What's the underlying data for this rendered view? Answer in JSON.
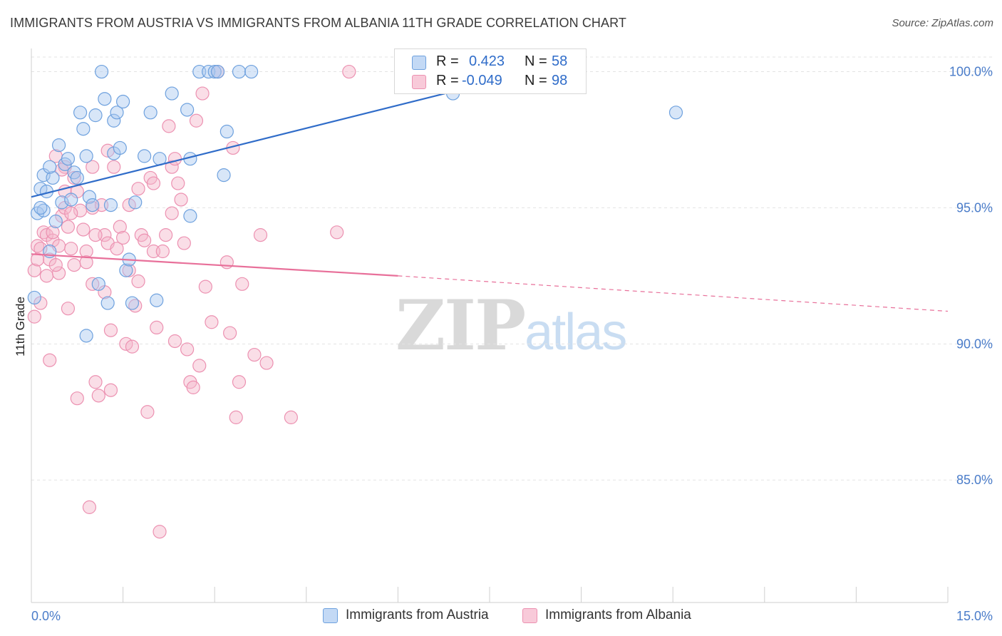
{
  "header": {
    "title": "IMMIGRANTS FROM AUSTRIA VS IMMIGRANTS FROM ALBANIA 11TH GRADE CORRELATION CHART",
    "source": "Source: ZipAtlas.com"
  },
  "watermark": {
    "zip": "ZIP",
    "atlas": "atlas"
  },
  "legend": {
    "rows": [
      {
        "r_label": "R = ",
        "r_value": "0.423",
        "n_label": "N = ",
        "n_value": "58",
        "color": "#a8c8f0"
      },
      {
        "r_label": "R = ",
        "r_value": "-0.049",
        "n_label": "N = ",
        "n_value": "98",
        "color": "#f4b6c9"
      }
    ]
  },
  "bottom_legend": [
    {
      "label": "Immigrants from Austria",
      "color": "#a8c8f0"
    },
    {
      "label": "Immigrants from Albania",
      "color": "#f4b6c9"
    }
  ],
  "chart_data": {
    "type": "scatter",
    "title": "IMMIGRANTS FROM AUSTRIA VS IMMIGRANTS FROM ALBANIA 11TH GRADE CORRELATION CHART",
    "xlabel": "",
    "ylabel": "11th Grade",
    "xlim": [
      0,
      15
    ],
    "ylim": [
      80.5,
      100.8
    ],
    "x_tick_labels": [
      "0.0%",
      "15.0%"
    ],
    "y_ticks": [
      85,
      90,
      95,
      100
    ],
    "y_tick_labels": [
      "85.0%",
      "90.0%",
      "95.0%",
      "100.0%"
    ],
    "grid": true,
    "colors": {
      "austria": "#6ea1de",
      "albania": "#ec91b1",
      "austria_line": "#2f6cc9",
      "albania_line": "#e8709a"
    },
    "series": [
      {
        "name": "Immigrants from Austria",
        "trend": {
          "x0": 0,
          "y0": 95.4,
          "x1": 8.2,
          "y1": 100.0
        },
        "points": [
          [
            0.05,
            91.7
          ],
          [
            0.1,
            94.8
          ],
          [
            0.15,
            95.7
          ],
          [
            0.2,
            94.9
          ],
          [
            0.2,
            96.2
          ],
          [
            0.25,
            95.6
          ],
          [
            0.3,
            93.4
          ],
          [
            0.35,
            96.1
          ],
          [
            0.4,
            94.5
          ],
          [
            0.45,
            97.3
          ],
          [
            0.5,
            95.2
          ],
          [
            0.55,
            96.6
          ],
          [
            0.6,
            96.8
          ],
          [
            0.65,
            95.3
          ],
          [
            0.7,
            96.3
          ],
          [
            0.75,
            96.1
          ],
          [
            0.8,
            98.5
          ],
          [
            0.85,
            97.9
          ],
          [
            0.9,
            96.9
          ],
          [
            0.95,
            95.4
          ],
          [
            1.0,
            95.1
          ],
          [
            1.05,
            98.4
          ],
          [
            1.1,
            92.2
          ],
          [
            1.15,
            100.0
          ],
          [
            1.2,
            99.0
          ],
          [
            1.25,
            91.5
          ],
          [
            1.3,
            95.1
          ],
          [
            1.35,
            97.0
          ],
          [
            1.35,
            98.2
          ],
          [
            1.4,
            98.5
          ],
          [
            1.45,
            97.2
          ],
          [
            1.5,
            98.9
          ],
          [
            1.55,
            92.7
          ],
          [
            1.6,
            93.1
          ],
          [
            1.65,
            91.5
          ],
          [
            1.7,
            95.2
          ],
          [
            1.85,
            96.9
          ],
          [
            1.95,
            98.5
          ],
          [
            2.05,
            91.6
          ],
          [
            2.1,
            96.8
          ],
          [
            2.3,
            99.2
          ],
          [
            2.55,
            98.6
          ],
          [
            2.6,
            96.8
          ],
          [
            2.6,
            94.7
          ],
          [
            2.75,
            100.0
          ],
          [
            2.9,
            100.0
          ],
          [
            3.0,
            100.0
          ],
          [
            3.05,
            100.0
          ],
          [
            3.15,
            96.2
          ],
          [
            3.2,
            97.8
          ],
          [
            3.4,
            100.0
          ],
          [
            3.6,
            100.0
          ],
          [
            0.9,
            90.3
          ],
          [
            0.15,
            95.0
          ],
          [
            6.9,
            99.2
          ],
          [
            8.1,
            100.0
          ],
          [
            10.55,
            98.5
          ],
          [
            0.3,
            96.5
          ]
        ]
      },
      {
        "name": "Immigrants from Albania",
        "trend": {
          "x0": 0,
          "y0": 93.3,
          "x1": 6.0,
          "y1": 92.5,
          "dash_to_x": 15.0,
          "dash_to_y": 91.2
        },
        "points": [
          [
            0.05,
            92.7
          ],
          [
            0.05,
            91.0
          ],
          [
            0.1,
            93.6
          ],
          [
            0.1,
            93.1
          ],
          [
            0.15,
            91.5
          ],
          [
            0.2,
            94.1
          ],
          [
            0.25,
            92.5
          ],
          [
            0.25,
            94.0
          ],
          [
            0.3,
            89.4
          ],
          [
            0.3,
            93.1
          ],
          [
            0.35,
            93.8
          ],
          [
            0.4,
            96.9
          ],
          [
            0.45,
            92.6
          ],
          [
            0.45,
            93.6
          ],
          [
            0.5,
            94.7
          ],
          [
            0.55,
            95.6
          ],
          [
            0.55,
            96.5
          ],
          [
            0.6,
            94.3
          ],
          [
            0.6,
            91.3
          ],
          [
            0.65,
            93.5
          ],
          [
            0.7,
            96.1
          ],
          [
            0.7,
            92.9
          ],
          [
            0.75,
            88.0
          ],
          [
            0.8,
            94.9
          ],
          [
            0.85,
            94.2
          ],
          [
            0.9,
            93.4
          ],
          [
            0.95,
            84.0
          ],
          [
            1.0,
            95.0
          ],
          [
            1.0,
            96.5
          ],
          [
            1.05,
            88.6
          ],
          [
            1.1,
            88.1
          ],
          [
            1.15,
            95.1
          ],
          [
            1.2,
            94.0
          ],
          [
            1.25,
            93.7
          ],
          [
            1.25,
            97.1
          ],
          [
            1.3,
            88.3
          ],
          [
            1.35,
            96.5
          ],
          [
            1.4,
            93.5
          ],
          [
            1.45,
            94.3
          ],
          [
            1.5,
            93.9
          ],
          [
            1.55,
            90.0
          ],
          [
            1.6,
            95.1
          ],
          [
            1.65,
            89.9
          ],
          [
            1.7,
            91.4
          ],
          [
            1.75,
            95.7
          ],
          [
            1.8,
            94.0
          ],
          [
            1.85,
            93.8
          ],
          [
            1.9,
            87.5
          ],
          [
            1.95,
            96.1
          ],
          [
            2.0,
            93.4
          ],
          [
            2.05,
            90.6
          ],
          [
            2.1,
            83.1
          ],
          [
            2.15,
            93.4
          ],
          [
            2.2,
            94.0
          ],
          [
            2.25,
            98.0
          ],
          [
            2.3,
            96.5
          ],
          [
            2.35,
            96.8
          ],
          [
            2.4,
            95.9
          ],
          [
            2.45,
            95.3
          ],
          [
            2.5,
            93.7
          ],
          [
            2.55,
            89.8
          ],
          [
            2.6,
            88.6
          ],
          [
            2.65,
            88.4
          ],
          [
            2.7,
            98.2
          ],
          [
            2.75,
            89.2
          ],
          [
            2.8,
            99.2
          ],
          [
            2.85,
            92.1
          ],
          [
            2.95,
            90.8
          ],
          [
            3.05,
            100.0
          ],
          [
            3.2,
            93.0
          ],
          [
            3.25,
            90.4
          ],
          [
            3.3,
            97.2
          ],
          [
            3.35,
            87.3
          ],
          [
            3.4,
            88.6
          ],
          [
            3.45,
            92.2
          ],
          [
            3.65,
            89.6
          ],
          [
            3.75,
            94.0
          ],
          [
            3.85,
            89.3
          ],
          [
            4.25,
            87.3
          ],
          [
            5.0,
            94.1
          ],
          [
            5.2,
            100.0
          ],
          [
            0.9,
            93.0
          ],
          [
            0.75,
            95.6
          ],
          [
            0.55,
            95.0
          ],
          [
            0.35,
            94.1
          ],
          [
            1.3,
            90.5
          ],
          [
            1.05,
            94.0
          ],
          [
            1.75,
            92.3
          ],
          [
            2.3,
            94.8
          ],
          [
            0.5,
            96.4
          ],
          [
            0.15,
            93.5
          ],
          [
            0.4,
            92.9
          ],
          [
            0.65,
            94.8
          ],
          [
            1.0,
            92.2
          ],
          [
            1.2,
            91.9
          ],
          [
            1.6,
            92.7
          ],
          [
            2.0,
            95.9
          ],
          [
            2.35,
            90.1
          ]
        ]
      }
    ]
  }
}
